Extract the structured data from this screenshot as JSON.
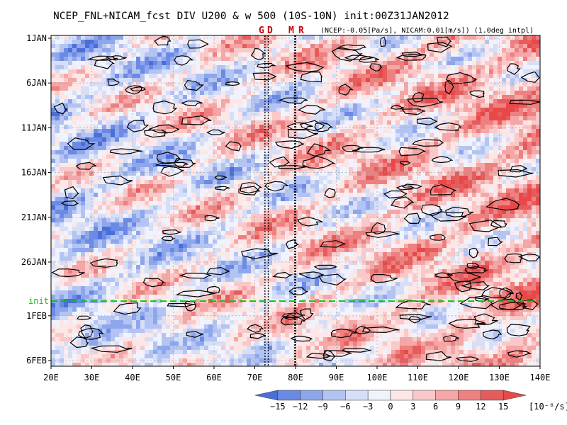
{
  "chart_data": {
    "type": "heatmap",
    "title": "NCEP_FNL+NICAM_fcst DIV U200 & w 500 (10S-10N) init:00Z31JAN2012",
    "subtitle": "(NCEP:-0.05[Pa/s], NICAM:0.01[m/s]) (1.0deg intpl)",
    "x_ticks": [
      "20E",
      "30E",
      "40E",
      "50E",
      "60E",
      "70E",
      "80E",
      "90E",
      "100E",
      "110E",
      "120E",
      "130E",
      "140E"
    ],
    "x_tick_values": [
      20,
      30,
      40,
      50,
      60,
      70,
      80,
      90,
      100,
      110,
      120,
      130,
      140
    ],
    "xlim": [
      20,
      140
    ],
    "y_ticks": [
      "1JAN",
      "6JAN",
      "11JAN",
      "16JAN",
      "21JAN",
      "26JAN",
      "1FEB",
      "6FEB"
    ],
    "y_tick_days": [
      1,
      6,
      11,
      16,
      21,
      26,
      32,
      37
    ],
    "ylim_days": [
      1,
      37
    ],
    "init_label": "init",
    "init_day": 31,
    "markers": [
      {
        "label": "G",
        "lon": 72.5
      },
      {
        "label": "D",
        "lon": 73.3
      },
      {
        "label": "M",
        "lon": 79.8
      },
      {
        "label": "R",
        "lon": 80.0
      }
    ],
    "colorbar": {
      "levels": [
        -15,
        -12,
        -9,
        -6,
        -3,
        0,
        3,
        6,
        9,
        12,
        15
      ],
      "level_labels": [
        "−15",
        "−12",
        "−9",
        "−6",
        "−3",
        "0",
        "3",
        "6",
        "9",
        "12",
        "15"
      ],
      "colors": [
        "#4a6fd8",
        "#6a8ae4",
        "#8ea6ec",
        "#b4c4f2",
        "#d6def8",
        "#f0f2fc",
        "#fde6e6",
        "#f9c8c8",
        "#f5a6a6",
        "#ee8080",
        "#e65c5c",
        "#e84848"
      ],
      "unit": "[10⁻⁶/s]"
    },
    "colors": {
      "init_line": "#00cc00",
      "marker_text": "#cc0000",
      "contour": "#000000"
    }
  }
}
